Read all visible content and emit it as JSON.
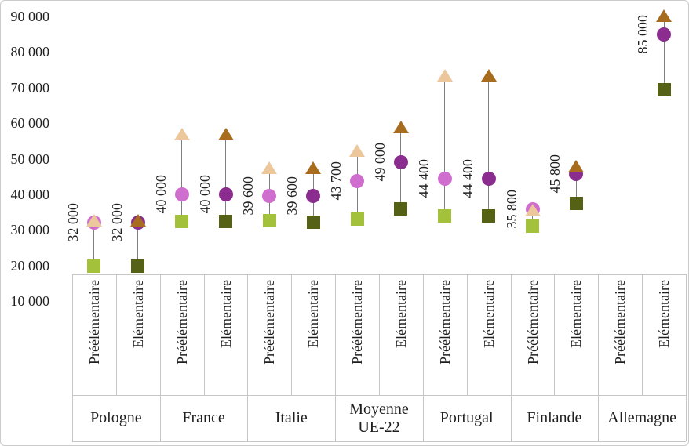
{
  "chart_data": {
    "type": "scatter",
    "subtype": "hi-lo range chart: square = minimum, circle = labeled value, triangle = maximum",
    "title": "",
    "xlabel": "",
    "ylabel": "",
    "grid": false,
    "legend": "none",
    "y_axis": {
      "min": 10000,
      "max": 90000,
      "step": 10000,
      "ticks": [
        {
          "value": 90000,
          "label": "90 000"
        },
        {
          "value": 80000,
          "label": "80 000"
        },
        {
          "value": 70000,
          "label": "70 000"
        },
        {
          "value": 60000,
          "label": "60 000"
        },
        {
          "value": 50000,
          "label": "50 000"
        },
        {
          "value": 40000,
          "label": "40 000"
        },
        {
          "value": 30000,
          "label": "30 000"
        },
        {
          "value": 20000,
          "label": "20 000"
        },
        {
          "value": 10000,
          "label": "10 000"
        }
      ]
    },
    "groups": [
      {
        "country": "Pologne",
        "items": [
          {
            "level": "Préélémentaire",
            "min": 19800,
            "mid": 32000,
            "max": 32600,
            "mid_label": "32 000"
          },
          {
            "level": "Elémentaire",
            "min": 19800,
            "mid": 32000,
            "max": 32600,
            "mid_label": "32 000"
          }
        ]
      },
      {
        "country": "France",
        "items": [
          {
            "level": "Préélémentaire",
            "min": 32300,
            "mid": 40000,
            "max": 57000,
            "mid_label": "40 000"
          },
          {
            "level": "Elémentaire",
            "min": 32300,
            "mid": 40000,
            "max": 57000,
            "mid_label": "40 000"
          }
        ]
      },
      {
        "country": "Italie",
        "items": [
          {
            "level": "Préélémentaire",
            "min": 32600,
            "mid": 39600,
            "max": 47500,
            "mid_label": "39 600"
          },
          {
            "level": "Elémentaire",
            "min": 32200,
            "mid": 39600,
            "max": 47500,
            "mid_label": "39 600"
          }
        ]
      },
      {
        "country": "Moyenne UE-22",
        "items": [
          {
            "level": "Préélémentaire",
            "min": 33000,
            "mid": 43700,
            "max": 52400,
            "mid_label": "43 700"
          },
          {
            "level": "Elémentaire",
            "min": 36000,
            "mid": 49000,
            "max": 59000,
            "mid_label": "49 000"
          }
        ]
      },
      {
        "country": "Portugal",
        "items": [
          {
            "level": "Préélémentaire",
            "min": 34000,
            "mid": 44400,
            "max": 73500,
            "mid_label": "44 400"
          },
          {
            "level": "Elémentaire",
            "min": 34000,
            "mid": 44400,
            "max": 73500,
            "mid_label": "44 400"
          }
        ]
      },
      {
        "country": "Finlande",
        "items": [
          {
            "level": "Préélémentaire",
            "min": 31000,
            "mid": 35800,
            "max": 35600,
            "mid_label": "35 800"
          },
          {
            "level": "Elémentaire",
            "min": 37400,
            "mid": 45800,
            "max": 47800,
            "mid_label": "45 800"
          }
        ]
      },
      {
        "country": "Allemagne",
        "items": [
          {
            "level": "Préélémentaire",
            "min": null,
            "mid": null,
            "max": null,
            "mid_label": ""
          },
          {
            "level": "Elémentaire",
            "min": 69400,
            "mid": 85000,
            "max": 90300,
            "mid_label": "85 000"
          }
        ]
      }
    ],
    "colors": {
      "Préélémentaire": {
        "square": "#a3c13a",
        "circle": "#d06ed0",
        "triangle": "#ebc79b"
      },
      "Elémentaire": {
        "square": "#556114",
        "circle": "#8a2d8f",
        "triangle": "#a86c1e"
      },
      "hilo_line": "#7f7f7f",
      "axis_border": "#c6c6c6",
      "text": "#1f1f1f"
    }
  }
}
